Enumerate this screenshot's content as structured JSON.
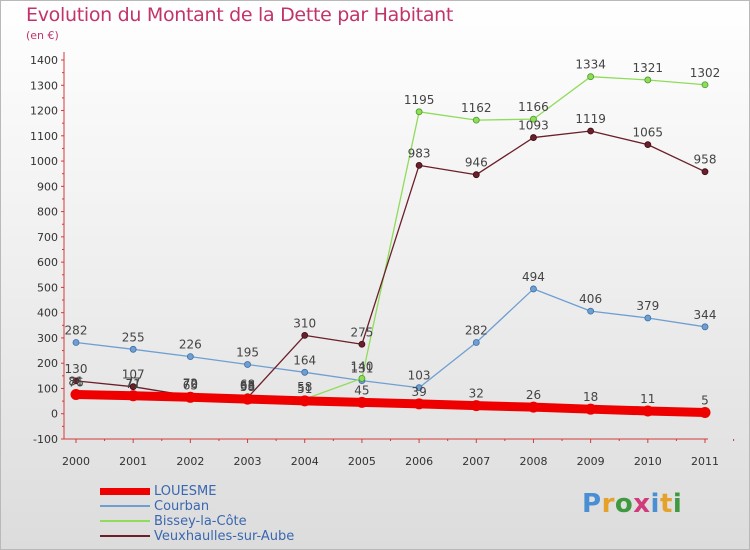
{
  "title": "Evolution du Montant de la Dette par Habitant",
  "unit_label": "(en €)",
  "logo_text": "Proxiti",
  "colors": {
    "title": "#c2336c",
    "axis": "#d33a3a",
    "louesme": "#ee0000",
    "courban": "#6f9fd1",
    "bissey": "#8fdc5a",
    "veuxhaulles": "#6b1f2a",
    "legend_text": "#3a67b0"
  },
  "chart_data": {
    "type": "line",
    "title": "Evolution du Montant de la Dette par Habitant",
    "ylabel": "(en €)",
    "xlabel": "",
    "ylim": [
      -100,
      1400
    ],
    "grid": false,
    "legend_placement": "bottom-left",
    "x": [
      "2000",
      "2001",
      "2002",
      "2003",
      "2004",
      "2005",
      "2006",
      "2007",
      "2008",
      "2009",
      "2010",
      "2011"
    ],
    "y_ticks": [
      -100,
      0,
      100,
      200,
      300,
      400,
      500,
      600,
      700,
      800,
      900,
      1000,
      1100,
      1200,
      1300,
      1400
    ],
    "series": [
      {
        "name": "LOUESME",
        "key": "louesme",
        "values": [
          76,
          71,
          65,
          58,
          51,
          45,
          39,
          32,
          26,
          18,
          11,
          5
        ]
      },
      {
        "name": "Courban",
        "key": "courban",
        "values": [
          282,
          255,
          226,
          195,
          164,
          131,
          103,
          282,
          494,
          406,
          379,
          344
        ]
      },
      {
        "name": "Bissey-la-Côte",
        "key": "bissey",
        "values": [
          81,
          77,
          72,
          68,
          58,
          140,
          1195,
          1162,
          1166,
          1334,
          1321,
          1302
        ]
      },
      {
        "name": "Veuxhaulles-sur-Aube",
        "key": "veuxhaulles",
        "values": [
          130,
          107,
          70,
          63,
          310,
          275,
          983,
          946,
          1093,
          1119,
          1065,
          958
        ]
      }
    ]
  }
}
